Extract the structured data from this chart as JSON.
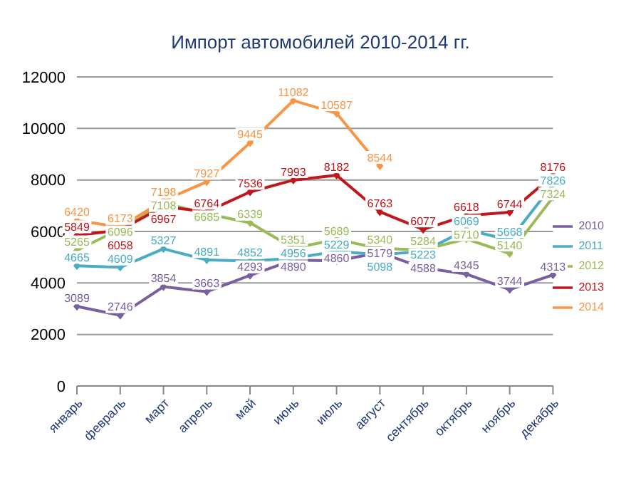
{
  "chart_data": {
    "type": "line",
    "title": "Импорт автомобилей 2010-2014 гг.",
    "categories": [
      "январь",
      "февраль",
      "март",
      "апрель",
      "май",
      "июнь",
      "июль",
      "август",
      "сентябрь",
      "октябрь",
      "ноябрь",
      "декабрь"
    ],
    "series": [
      {
        "name": "2010",
        "color": "#7a5fa0",
        "values": [
          3089,
          2746,
          3854,
          3663,
          4293,
          4890,
          4860,
          5179,
          4588,
          4345,
          3744,
          4313
        ]
      },
      {
        "name": "2011",
        "color": "#4bacc6",
        "values": [
          4665,
          4609,
          5327,
          4891,
          4852,
          4956,
          5229,
          5098,
          5223,
          6069,
          5668,
          7826
        ]
      },
      {
        "name": "2012",
        "color": "#9bbb59",
        "values": [
          5265,
          6096,
          7108,
          6685,
          6339,
          5351,
          5689,
          5340,
          5284,
          5710,
          5140,
          7324
        ]
      },
      {
        "name": "2013",
        "color": "#c0171c",
        "values": [
          5849,
          6058,
          6967,
          6764,
          7536,
          7993,
          8182,
          6763,
          6077,
          6618,
          6744,
          8176
        ]
      },
      {
        "name": "2014",
        "color": "#f79646",
        "values": [
          6420,
          6173,
          7198,
          7927,
          9445,
          11082,
          10587,
          8544,
          null,
          null,
          null,
          null
        ]
      }
    ],
    "ylim": [
      0,
      12000
    ],
    "yticks": [
      0,
      2000,
      4000,
      6000,
      8000,
      10000,
      12000
    ],
    "grid": "y",
    "legend": "right",
    "marker": "diamond",
    "line_style": "solid",
    "data_labels": true
  }
}
